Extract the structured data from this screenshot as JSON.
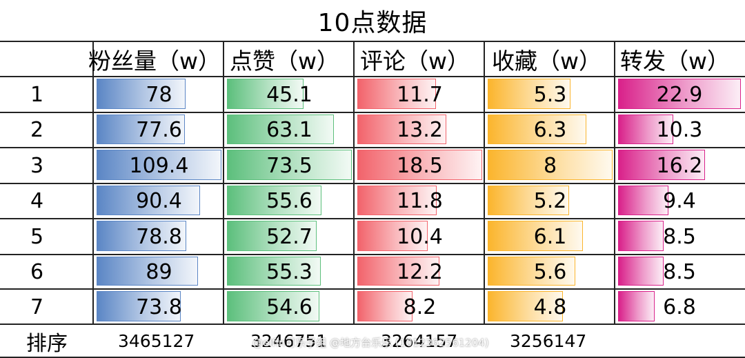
{
  "chart_data": {
    "type": "table",
    "title": "10点数据",
    "columns": [
      "粉丝量（w）",
      "点赞（w）",
      "评论（w）",
      "收藏（w）",
      "转发（w）"
    ],
    "rows": [
      "1",
      "2",
      "3",
      "4",
      "5",
      "6",
      "7"
    ],
    "series": [
      {
        "name": "粉丝量（w）",
        "values": [
          78,
          77.6,
          109.4,
          90.4,
          78.8,
          89,
          73.8
        ],
        "color": "#5b86c5"
      },
      {
        "name": "点赞（w）",
        "values": [
          45.1,
          63.1,
          73.5,
          55.6,
          52.7,
          55.3,
          54.6
        ],
        "color": "#5cbf7c"
      },
      {
        "name": "评论（w）",
        "values": [
          11.7,
          13.2,
          18.5,
          11.8,
          10.4,
          12.2,
          8.2
        ],
        "color": "#f2636b"
      },
      {
        "name": "收藏（w）",
        "values": [
          5.3,
          6.3,
          8,
          5.2,
          6.1,
          5.6,
          4.8
        ],
        "color": "#fbb52d"
      },
      {
        "name": "转发（w）",
        "values": [
          22.9,
          10.3,
          16.2,
          9.4,
          8.5,
          8.5,
          6.8
        ],
        "color": "#d9218a"
      }
    ],
    "footer": {
      "label": "排序",
      "values": [
        "3465127",
        "3246751",
        "3264157",
        "3256147",
        ""
      ]
    },
    "watermark": "@elfin可乐子组 @地方台乐乐 (1012362561204)"
  }
}
